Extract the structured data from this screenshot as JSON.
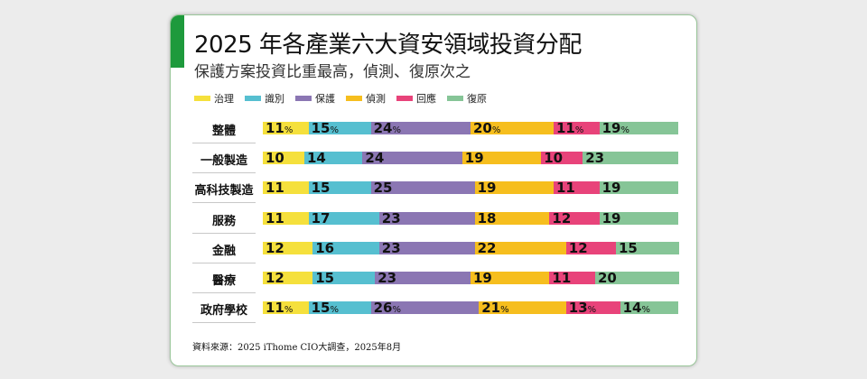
{
  "title": "2025 年各產業六大資安領域投資分配",
  "subtitle": "保護方案投資比重最高，偵測、復原次之",
  "source": "資料來源：2025 iThome CIO大調查，2025年8月",
  "chart_data": {
    "type": "bar",
    "orientation": "horizontal",
    "stacked": true,
    "title": "2025 年各產業六大資安領域投資分配",
    "categories": [
      "整體",
      "一般製造",
      "高科技製造",
      "服務",
      "金融",
      "醫療",
      "政府學校"
    ],
    "percent_sign_rows": [
      0,
      6
    ],
    "unit": "%",
    "series": [
      {
        "name": "治理",
        "color": "#f5e03c",
        "values": [
          11,
          10,
          11,
          11,
          12,
          12,
          11
        ]
      },
      {
        "name": "識別",
        "color": "#56bfd0",
        "values": [
          15,
          14,
          15,
          17,
          16,
          15,
          15
        ]
      },
      {
        "name": "保護",
        "color": "#8b76b3",
        "values": [
          24,
          24,
          25,
          23,
          23,
          23,
          26
        ]
      },
      {
        "name": "偵測",
        "color": "#f6be1e",
        "values": [
          20,
          19,
          19,
          18,
          22,
          19,
          21
        ]
      },
      {
        "name": "回應",
        "color": "#e8437a",
        "values": [
          11,
          10,
          11,
          12,
          12,
          11,
          13
        ]
      },
      {
        "name": "復原",
        "color": "#86c597",
        "values": [
          19,
          23,
          19,
          19,
          15,
          20,
          14
        ]
      }
    ],
    "legend": "top-left"
  }
}
